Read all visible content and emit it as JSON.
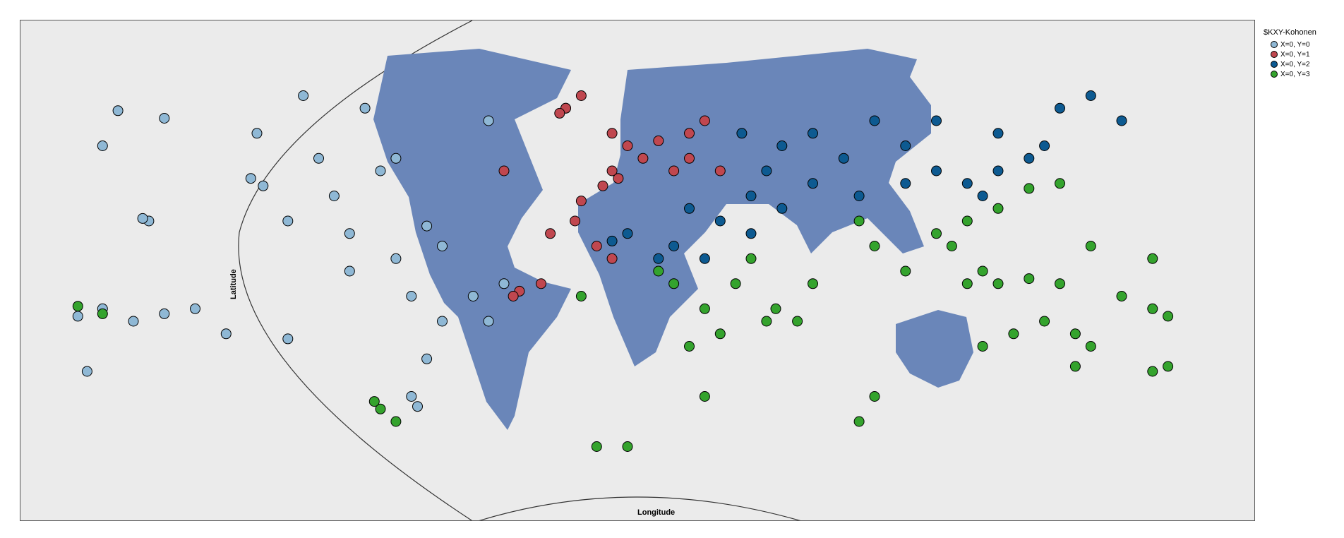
{
  "chart_data": {
    "type": "scatter",
    "title": "",
    "xlabel": "Longitude",
    "ylabel": "Latitude",
    "legend": {
      "title": "$KXY-Kohonen",
      "placement": "top-right",
      "entries": [
        {
          "label": "X=0, Y=0",
          "color": "#8fb8d5"
        },
        {
          "label": "X=0, Y=1",
          "color": "#c0474f"
        },
        {
          "label": "X=0, Y=2",
          "color": "#0d5a91"
        },
        {
          "label": "X=0, Y=3",
          "color": "#34a32d"
        }
      ]
    },
    "series": [
      {
        "name": "X=0, Y=0",
        "color": "#8fb8d5",
        "points": [
          [
            -155,
            20
          ],
          [
            -157,
            21
          ],
          [
            -150,
            61
          ],
          [
            -165,
            64
          ],
          [
            -122,
            37
          ],
          [
            -118,
            34
          ],
          [
            -100,
            45
          ],
          [
            -80,
            40
          ],
          [
            -75,
            45
          ],
          [
            -95,
            30
          ],
          [
            -90,
            15
          ],
          [
            -70,
            -10
          ],
          [
            -60,
            -20
          ],
          [
            -50,
            -10
          ],
          [
            -65,
            -35
          ],
          [
            -70,
            -50
          ],
          [
            -68,
            -54
          ],
          [
            -140,
            -15
          ],
          [
            -150,
            -17
          ],
          [
            -160,
            -20
          ],
          [
            -170,
            -15
          ],
          [
            -130,
            -25
          ],
          [
            -110,
            -27
          ],
          [
            -90,
            0
          ],
          [
            -45,
            -20
          ],
          [
            -40,
            -5
          ],
          [
            -75,
            5
          ],
          [
            -60,
            10
          ],
          [
            -20,
            65
          ],
          [
            -45,
            60
          ],
          [
            -85,
            65
          ],
          [
            -105,
            70
          ],
          [
            -110,
            20
          ],
          [
            -170,
            50
          ],
          [
            -175,
            -40
          ],
          [
            -178,
            -18
          ],
          [
            -120,
            55
          ],
          [
            -65,
            18
          ]
        ]
      },
      {
        "name": "X=0, Y=1",
        "color": "#c0474f",
        "points": [
          [
            0,
            50
          ],
          [
            10,
            52
          ],
          [
            20,
            55
          ],
          [
            25,
            60
          ],
          [
            -5,
            40
          ],
          [
            -3,
            37
          ],
          [
            -8,
            34
          ],
          [
            -15,
            28
          ],
          [
            -17,
            20
          ],
          [
            -10,
            10
          ],
          [
            -5,
            5
          ],
          [
            -35,
            -8
          ],
          [
            -37,
            -10
          ],
          [
            -25,
            15
          ],
          [
            -20,
            65
          ],
          [
            -15,
            70
          ],
          [
            -22,
            63
          ],
          [
            30,
            40
          ],
          [
            20,
            45
          ],
          [
            15,
            40
          ],
          [
            -5,
            55
          ],
          [
            5,
            45
          ],
          [
            -40,
            40
          ],
          [
            -28,
            -5
          ]
        ]
      },
      {
        "name": "X=0, Y=2",
        "color": "#0d5a91",
        "points": [
          [
            37,
            55
          ],
          [
            60,
            55
          ],
          [
            80,
            60
          ],
          [
            100,
            60
          ],
          [
            120,
            55
          ],
          [
            135,
            50
          ],
          [
            140,
            65
          ],
          [
            160,
            60
          ],
          [
            150,
            70
          ],
          [
            45,
            40
          ],
          [
            60,
            35
          ],
          [
            75,
            30
          ],
          [
            90,
            35
          ],
          [
            100,
            40
          ],
          [
            110,
            35
          ],
          [
            120,
            40
          ],
          [
            130,
            45
          ],
          [
            20,
            25
          ],
          [
            30,
            20
          ],
          [
            40,
            15
          ],
          [
            50,
            25
          ],
          [
            15,
            10
          ],
          [
            0,
            15
          ],
          [
            -5,
            12
          ],
          [
            10,
            5
          ],
          [
            25,
            5
          ],
          [
            40,
            30
          ],
          [
            70,
            45
          ],
          [
            50,
            50
          ],
          [
            115,
            30
          ],
          [
            90,
            50
          ]
        ]
      },
      {
        "name": "X=0, Y=3",
        "color": "#34a32d",
        "points": [
          [
            30,
            -25
          ],
          [
            25,
            -15
          ],
          [
            20,
            -30
          ],
          [
            35,
            -5
          ],
          [
            45,
            -20
          ],
          [
            48,
            -15
          ],
          [
            40,
            5
          ],
          [
            15,
            -5
          ],
          [
            10,
            0
          ],
          [
            75,
            20
          ],
          [
            80,
            10
          ],
          [
            100,
            15
          ],
          [
            105,
            10
          ],
          [
            110,
            20
          ],
          [
            120,
            25
          ],
          [
            115,
            0
          ],
          [
            110,
            -5
          ],
          [
            120,
            -5
          ],
          [
            130,
            -3
          ],
          [
            140,
            -5
          ],
          [
            145,
            -25
          ],
          [
            150,
            -30
          ],
          [
            135,
            -20
          ],
          [
            125,
            -25
          ],
          [
            115,
            -30
          ],
          [
            145,
            -38
          ],
          [
            170,
            -40
          ],
          [
            175,
            -38
          ],
          [
            160,
            -10
          ],
          [
            170,
            -15
          ],
          [
            175,
            -18
          ],
          [
            -178,
            -14
          ],
          [
            -170,
            -17
          ],
          [
            150,
            10
          ],
          [
            170,
            5
          ],
          [
            55,
            -20
          ],
          [
            60,
            -5
          ],
          [
            140,
            35
          ],
          [
            130,
            33
          ],
          [
            -80,
            -55
          ],
          [
            -82,
            -52
          ],
          [
            -75,
            -60
          ],
          [
            25,
            -50
          ],
          [
            80,
            -50
          ],
          [
            -10,
            -70
          ],
          [
            75,
            -60
          ],
          [
            0,
            -70
          ],
          [
            90,
            0
          ],
          [
            -15,
            -10
          ]
        ]
      }
    ]
  }
}
